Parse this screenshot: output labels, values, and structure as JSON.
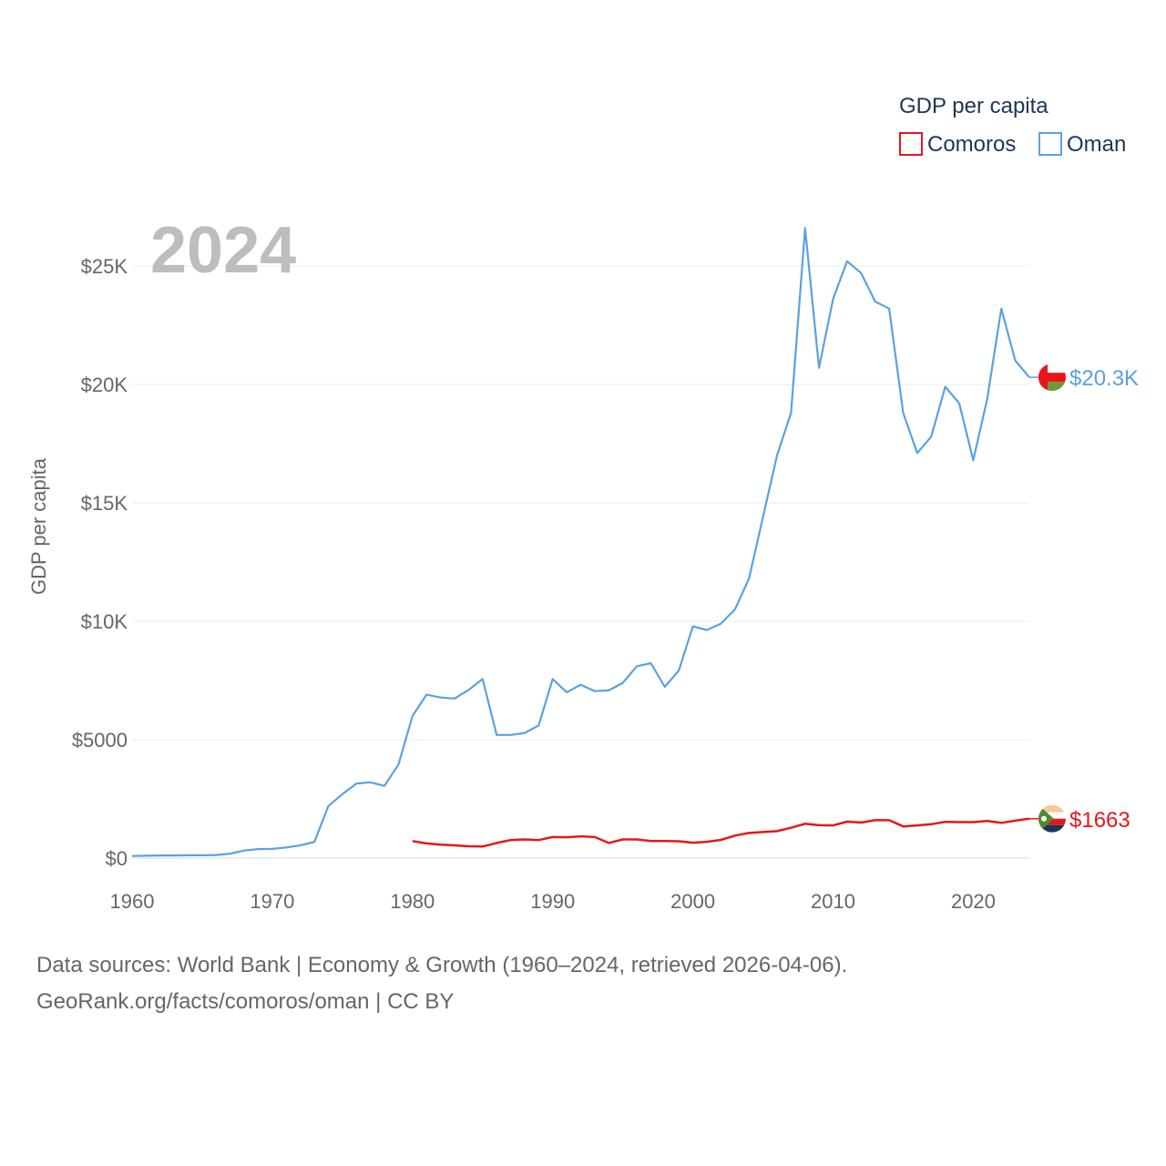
{
  "chart_data": {
    "type": "line",
    "title": "",
    "year_label": "2024",
    "ylabel": "GDP per capita",
    "xlabel": "",
    "xlim": [
      1960,
      2024
    ],
    "ylim": [
      0,
      27000
    ],
    "x_ticks": [
      "1960",
      "1970",
      "1980",
      "1990",
      "2000",
      "2010",
      "2020"
    ],
    "y_ticks": [
      {
        "value": 0,
        "label": "$0"
      },
      {
        "value": 5000,
        "label": "$5000"
      },
      {
        "value": 10000,
        "label": "$10K"
      },
      {
        "value": 15000,
        "label": "$15K"
      },
      {
        "value": 20000,
        "label": "$20K"
      },
      {
        "value": 25000,
        "label": "$25K"
      }
    ],
    "legend": {
      "title": "GDP per capita",
      "position": "top-right"
    },
    "series": [
      {
        "name": "Comoros",
        "color": "#e8161b",
        "end_label": "$1663",
        "flag_icon": "comoros-flag-icon",
        "x": [
          1980,
          1981,
          1982,
          1983,
          1984,
          1985,
          1986,
          1987,
          1988,
          1989,
          1990,
          1991,
          1992,
          1993,
          1994,
          1995,
          1996,
          1997,
          1998,
          1999,
          2000,
          2001,
          2002,
          2003,
          2004,
          2005,
          2006,
          2007,
          2008,
          2009,
          2010,
          2011,
          2012,
          2013,
          2014,
          2015,
          2016,
          2017,
          2018,
          2019,
          2020,
          2021,
          2022,
          2023,
          2024
        ],
        "y": [
          720,
          620,
          570,
          540,
          500,
          490,
          640,
          760,
          790,
          760,
          890,
          880,
          920,
          890,
          640,
          790,
          790,
          720,
          720,
          710,
          650,
          690,
          770,
          950,
          1060,
          1100,
          1140,
          1280,
          1450,
          1390,
          1380,
          1540,
          1500,
          1600,
          1600,
          1340,
          1380,
          1430,
          1530,
          1520,
          1520,
          1570,
          1490,
          1580,
          1663
        ]
      },
      {
        "name": "Oman",
        "color": "#5aa2e0",
        "end_label": "$20.3K",
        "flag_icon": "oman-flag-icon",
        "x": [
          1960,
          1961,
          1962,
          1963,
          1964,
          1965,
          1966,
          1967,
          1968,
          1969,
          1970,
          1971,
          1972,
          1973,
          1974,
          1975,
          1976,
          1977,
          1978,
          1979,
          1980,
          1981,
          1982,
          1983,
          1984,
          1985,
          1986,
          1987,
          1988,
          1989,
          1990,
          1991,
          1992,
          1993,
          1994,
          1995,
          1996,
          1997,
          1998,
          1999,
          2000,
          2001,
          2002,
          2003,
          2004,
          2005,
          2006,
          2007,
          2008,
          2009,
          2010,
          2011,
          2012,
          2013,
          2014,
          2015,
          2016,
          2017,
          2018,
          2019,
          2020,
          2021,
          2022,
          2023,
          2024
        ],
        "y": [
          90,
          100,
          110,
          110,
          120,
          120,
          130,
          190,
          320,
          380,
          390,
          450,
          540,
          680,
          2200,
          2700,
          3150,
          3200,
          3050,
          3950,
          6000,
          6900,
          6780,
          6740,
          7100,
          7560,
          5200,
          5200,
          5280,
          5600,
          7560,
          7000,
          7320,
          7050,
          7080,
          7400,
          8100,
          8230,
          7230,
          7920,
          9780,
          9630,
          9900,
          10500,
          11800,
          14400,
          17000,
          18800,
          26600,
          20700,
          23600,
          25200,
          24700,
          23500,
          23200,
          18800,
          17100,
          17800,
          19900,
          19200,
          16800,
          19400,
          23200,
          21000,
          20300
        ]
      }
    ]
  },
  "source": {
    "line1": "Data sources: World Bank | Economy & Growth (1960–2024, retrieved 2026-04-06).",
    "line2": "GeoRank.org/facts/comoros/oman | CC BY"
  }
}
